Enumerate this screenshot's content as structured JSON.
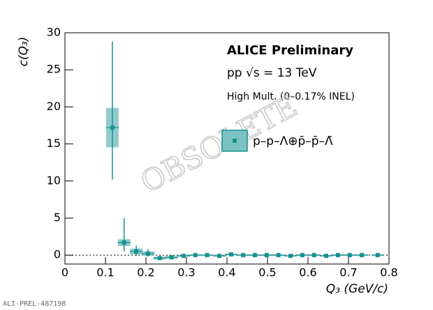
{
  "chart_data": {
    "type": "scatter",
    "title": "ALICE Preliminary",
    "subtitle": "pp √s = 13 TeV",
    "annotation": "High Mult. (0–0.17% INEL)",
    "watermark": "OBSOLETE",
    "footnote": "ALI-PREL-487198",
    "x_label": "Q₃ (GeV/c)",
    "y_label": "c(Q₃)",
    "xlim": [
      0,
      0.8
    ],
    "ylim": [
      -1.2,
      30
    ],
    "xticks": [
      0,
      0.1,
      0.2,
      0.3,
      0.4,
      0.5,
      0.6,
      0.7,
      0.8
    ],
    "yticks": [
      0,
      5,
      10,
      15,
      20,
      25,
      30
    ],
    "reference_line": 0,
    "series": [
      {
        "name": "p–p–Λ⊕p̄–p̄–Λ̄",
        "color": "#168f8f",
        "syst_color": "#7cc2c2",
        "x": [
          0.117,
          0.146,
          0.176,
          0.205,
          0.234,
          0.263,
          0.293,
          0.322,
          0.351,
          0.381,
          0.41,
          0.44,
          0.469,
          0.498,
          0.527,
          0.557,
          0.586,
          0.615,
          0.645,
          0.674,
          0.703,
          0.733,
          0.772
        ],
        "values": [
          17.2,
          1.7,
          0.5,
          0.2,
          -0.4,
          -0.3,
          -0.1,
          0,
          0,
          -0.1,
          0.1,
          0,
          0,
          0,
          0,
          -0.1,
          0,
          0,
          -0.1,
          0,
          0,
          0,
          0
        ],
        "err_low": [
          7,
          1.2,
          0.6,
          0.4,
          0.2,
          0.2,
          0.1,
          0.1,
          0.1,
          0.1,
          0.1,
          0.1,
          0.1,
          0.1,
          0.1,
          0.1,
          0.1,
          0.1,
          0.1,
          0.1,
          0.1,
          0.1,
          0.1
        ],
        "err_high": [
          11.6,
          3.3,
          0.8,
          0.6,
          0.2,
          0.2,
          0.1,
          0.1,
          0.1,
          0.1,
          0.1,
          0.1,
          0.1,
          0.1,
          0.1,
          0.1,
          0.1,
          0.1,
          0.1,
          0.1,
          0.1,
          0.1,
          0.1
        ],
        "syst": [
          2.65,
          0.45,
          0.4,
          0.3,
          0.2,
          0.2,
          0.1,
          0.1,
          0.1,
          0.1,
          0.1,
          0.1,
          0.1,
          0.1,
          0.1,
          0.1,
          0.1,
          0.1,
          0.1,
          0.1,
          0.1,
          0.1,
          0.1
        ]
      }
    ]
  }
}
